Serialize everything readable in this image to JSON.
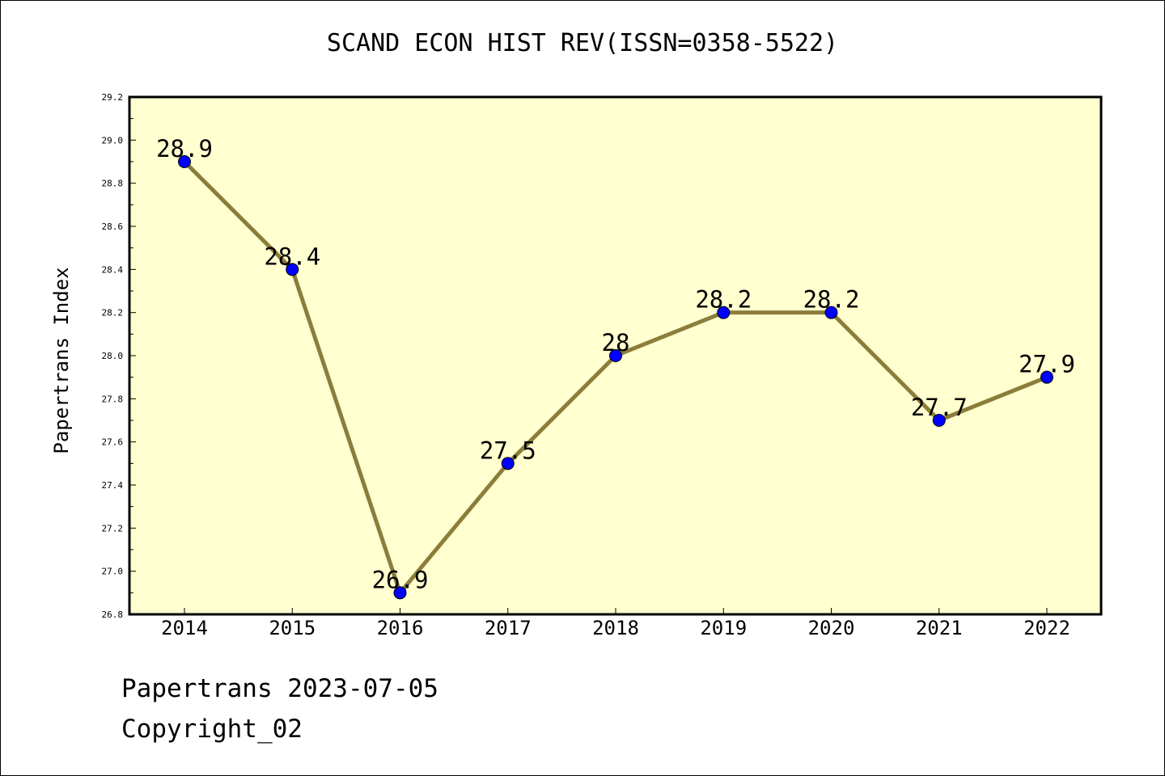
{
  "chart_data": {
    "type": "line",
    "title": "SCAND ECON HIST REV(ISSN=0358-5522)",
    "ylabel": "Papertrans Index",
    "xlabel": "",
    "categories": [
      "2014",
      "2015",
      "2016",
      "2017",
      "2018",
      "2019",
      "2020",
      "2021",
      "2022"
    ],
    "series": [
      {
        "values": [
          28.9,
          28.4,
          26.9,
          27.5,
          28.0,
          28.2,
          28.2,
          27.7,
          27.9
        ],
        "data_labels": [
          "28.9",
          "28.4",
          "26.9",
          "27.5",
          "28",
          "28.2",
          "28.2",
          "27.7",
          "27.9"
        ]
      }
    ],
    "ylim": [
      26.8,
      29.2
    ],
    "yticks": [
      26.8,
      27.0,
      27.2,
      27.4,
      27.6,
      27.8,
      28.0,
      28.2,
      28.4,
      28.6,
      28.8,
      29.0,
      29.2
    ],
    "ytick_labels": [
      "26.8",
      "27.0",
      "27.2",
      "27.4",
      "27.6",
      "27.8",
      "28.0",
      "28.2",
      "28.4",
      "28.6",
      "28.8",
      "29.0",
      "29.2"
    ],
    "grid": false,
    "colors": {
      "plot_background": "#ffffd0",
      "line": "#8b7d3a",
      "marker": "#0000ff"
    }
  },
  "footer": {
    "line1": "Papertrans 2023-07-05",
    "line2": "Copyright_02"
  }
}
